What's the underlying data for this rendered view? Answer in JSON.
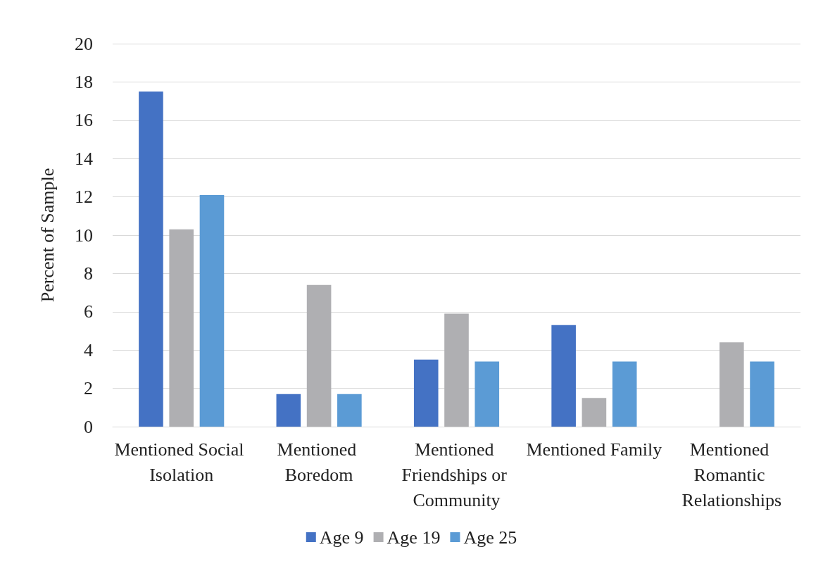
{
  "chart_data": {
    "type": "bar",
    "ylabel": "Percent of Sample",
    "categories": [
      "Mentioned Social Isolation",
      "Mentioned Boredom",
      "Mentioned Friendships or Community",
      "Mentioned Family",
      "Mentioned Romantic Relationships"
    ],
    "series": [
      {
        "name": "Age 9",
        "color": "#4472c4",
        "values": [
          17.5,
          1.7,
          3.5,
          5.3,
          0
        ]
      },
      {
        "name": "Age 19",
        "color": "#afafb2",
        "values": [
          10.3,
          7.4,
          5.9,
          1.5,
          4.4
        ]
      },
      {
        "name": "Age 25",
        "color": "#5b9bd5",
        "values": [
          12.1,
          1.7,
          3.4,
          3.4,
          3.4
        ]
      }
    ],
    "ylim": [
      0,
      20
    ],
    "yticks": [
      0,
      2,
      4,
      6,
      8,
      10,
      12,
      14,
      16,
      18,
      20
    ],
    "grid": "y",
    "legend": "bottom"
  }
}
